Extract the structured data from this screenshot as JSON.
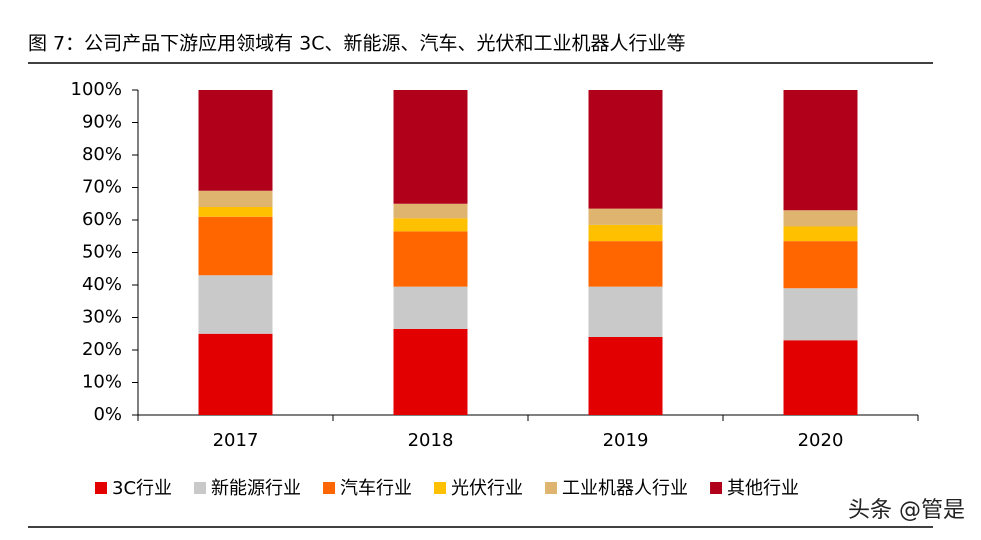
{
  "chart_data": {
    "type": "stacked-bar",
    "title": "图 7：公司产品下游应用领域有 3C、新能源、汽车、光伏和工业机器人行业等",
    "categories": [
      "2017",
      "2018",
      "2019",
      "2020"
    ],
    "series": [
      {
        "name": "3C行业",
        "color": "#e30000",
        "values": [
          25,
          26.5,
          24,
          23
        ]
      },
      {
        "name": "新能源行业",
        "color": "#c9c9c9",
        "values": [
          18,
          13,
          15.5,
          16
        ]
      },
      {
        "name": "汽车行业",
        "color": "#ff6600",
        "values": [
          18,
          17,
          14,
          14.5
        ]
      },
      {
        "name": "光伏行业",
        "color": "#ffc000",
        "values": [
          3,
          4,
          5,
          4.5
        ]
      },
      {
        "name": "工业机器人行业",
        "color": "#dfb46e",
        "values": [
          5,
          4.5,
          5,
          5
        ]
      },
      {
        "name": "其他行业",
        "color": "#b0001a",
        "values": [
          31,
          35,
          36.5,
          37
        ]
      }
    ],
    "ylim": [
      0,
      100
    ],
    "yticks": [
      {
        "value": 0,
        "label": "0%"
      },
      {
        "value": 10,
        "label": "10%"
      },
      {
        "value": 20,
        "label": "20%"
      },
      {
        "value": 30,
        "label": "30%"
      },
      {
        "value": 40,
        "label": "40%"
      },
      {
        "value": 50,
        "label": "50%"
      },
      {
        "value": 60,
        "label": "60%"
      },
      {
        "value": 70,
        "label": "70%"
      },
      {
        "value": 80,
        "label": "80%"
      },
      {
        "value": 90,
        "label": "90%"
      },
      {
        "value": 100,
        "label": "100%"
      }
    ],
    "legend": "bottom",
    "watermark": "头条 @管是"
  }
}
